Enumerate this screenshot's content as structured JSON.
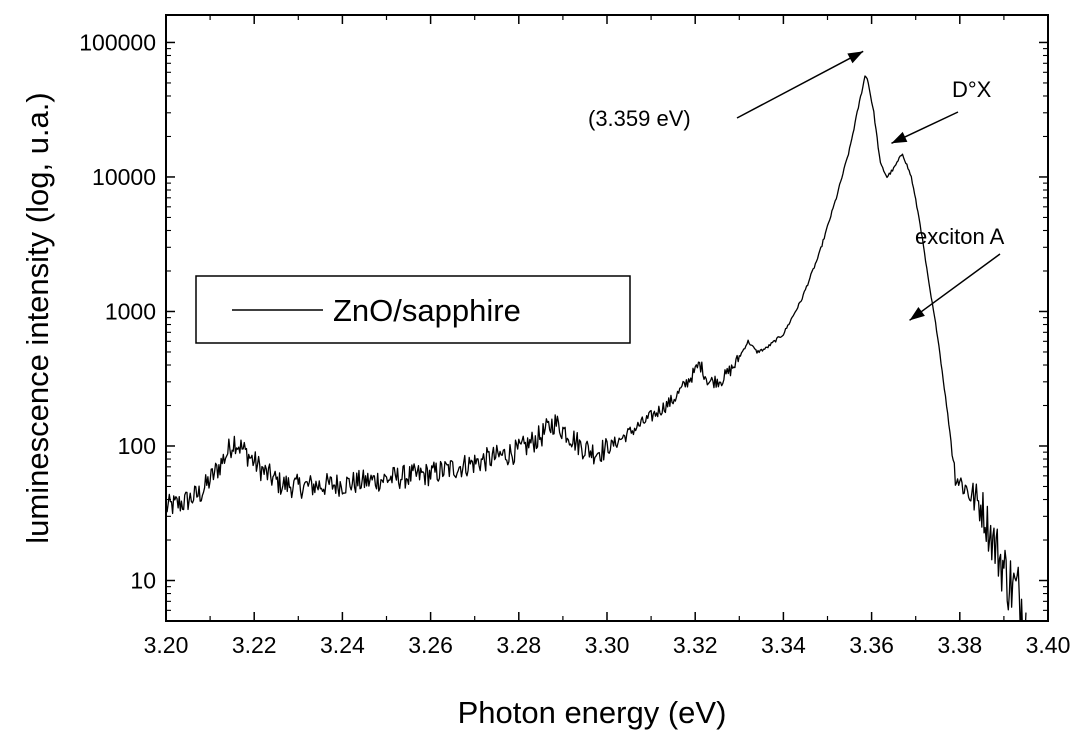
{
  "chart_data": {
    "type": "line",
    "xlabel": "Photon energy (eV)",
    "ylabel": "luminescence intensity (log, u.a.)",
    "xlim": [
      3.2,
      3.4
    ],
    "ylim": [
      5,
      160000
    ],
    "yscale": "log",
    "grid": false,
    "legend_position": "center-left",
    "x_ticks": [
      3.2,
      3.22,
      3.24,
      3.26,
      3.28,
      3.3,
      3.32,
      3.34,
      3.36,
      3.38,
      3.4
    ],
    "x_tick_labels": [
      "3.20",
      "3.22",
      "3.24",
      "3.26",
      "3.28",
      "3.30",
      "3.32",
      "3.34",
      "3.36",
      "3.38",
      "3.40"
    ],
    "y_ticks": [
      10,
      100,
      1000,
      10000,
      100000
    ],
    "y_tick_labels": [
      "10",
      "100",
      "1000",
      "10000",
      "100000"
    ],
    "series": [
      {
        "name": "ZnO/sapphire",
        "color": "#000000",
        "x": [
          3.2,
          3.204,
          3.208,
          3.212,
          3.2155,
          3.218,
          3.222,
          3.226,
          3.23,
          3.24,
          3.25,
          3.26,
          3.27,
          3.28,
          3.285,
          3.288,
          3.291,
          3.294,
          3.297,
          3.3,
          3.305,
          3.31,
          3.315,
          3.3195,
          3.321,
          3.323,
          3.326,
          3.329,
          3.332,
          3.334,
          3.336,
          3.34,
          3.344,
          3.348,
          3.352,
          3.355,
          3.357,
          3.3585,
          3.359,
          3.3605,
          3.362,
          3.3635,
          3.365,
          3.367,
          3.369,
          3.371,
          3.373,
          3.375,
          3.377,
          3.379,
          3.381,
          3.383,
          3.385,
          3.387,
          3.389,
          3.391,
          3.393,
          3.395
        ],
        "y": [
          35,
          38,
          45,
          70,
          110,
          90,
          65,
          52,
          50,
          52,
          57,
          62,
          75,
          92,
          118,
          150,
          125,
          100,
          90,
          95,
          125,
          165,
          220,
          340,
          410,
          300,
          310,
          400,
          600,
          500,
          530,
          680,
          1200,
          2600,
          7000,
          16000,
          33000,
          56000,
          55000,
          30000,
          12500,
          10000,
          11500,
          15000,
          10000,
          4500,
          1600,
          650,
          200,
          60,
          50,
          42,
          35,
          22,
          15,
          10,
          8,
          6
        ]
      }
    ],
    "annotations": [
      {
        "text": "(3.359 eV)",
        "target_x": 3.359,
        "target_y": 56000
      },
      {
        "text": "D°X",
        "target_x": 3.367,
        "target_y": 15000
      },
      {
        "text": "exciton A",
        "target_x": 3.3745,
        "target_y": 700
      }
    ]
  }
}
